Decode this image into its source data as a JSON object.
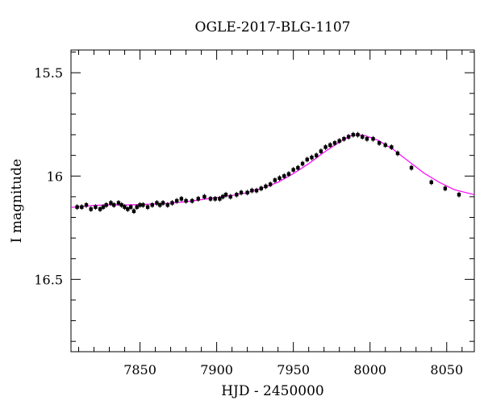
{
  "chart_data": {
    "type": "scatter",
    "title": "OGLE-2017-BLG-1107",
    "xlabel": "HJD - 2450000",
    "ylabel": "I magnitude",
    "xlim": [
      7805,
      8068
    ],
    "ylim": [
      16.85,
      15.39
    ],
    "y_inverted": true,
    "grid": false,
    "xticks": [
      {
        "value": 7850,
        "label": "7850"
      },
      {
        "value": 7900,
        "label": "7900"
      },
      {
        "value": 7950,
        "label": "7950"
      },
      {
        "value": 8000,
        "label": "8000"
      },
      {
        "value": 8050,
        "label": "8050"
      }
    ],
    "yticks": [
      {
        "value": 15.5,
        "label": "15.5"
      },
      {
        "value": 16,
        "label": "16"
      },
      {
        "value": 16.5,
        "label": "16.5"
      }
    ],
    "x_minor_step": 10,
    "y_minor_step": 0.1,
    "series": [
      {
        "kind": "points",
        "color": "#000000",
        "points": [
          [
            7809,
            16.15
          ],
          [
            7812,
            16.15
          ],
          [
            7815,
            16.14
          ],
          [
            7818,
            16.16
          ],
          [
            7821,
            16.15
          ],
          [
            7824,
            16.16
          ],
          [
            7826,
            16.15
          ],
          [
            7828,
            16.14
          ],
          [
            7831,
            16.13
          ],
          [
            7833,
            16.14
          ],
          [
            7836,
            16.13
          ],
          [
            7838,
            16.14
          ],
          [
            7840,
            16.15
          ],
          [
            7842,
            16.16
          ],
          [
            7844,
            16.15
          ],
          [
            7846,
            16.17
          ],
          [
            7848,
            16.15
          ],
          [
            7850,
            16.14
          ],
          [
            7852,
            16.14
          ],
          [
            7855,
            16.15
          ],
          [
            7858,
            16.14
          ],
          [
            7861,
            16.13
          ],
          [
            7863,
            16.14
          ],
          [
            7865,
            16.13
          ],
          [
            7868,
            16.14
          ],
          [
            7871,
            16.13
          ],
          [
            7874,
            16.12
          ],
          [
            7877,
            16.11
          ],
          [
            7880,
            16.12
          ],
          [
            7884,
            16.12
          ],
          [
            7888,
            16.11
          ],
          [
            7892,
            16.1
          ],
          [
            7896,
            16.11
          ],
          [
            7899,
            16.11
          ],
          [
            7902,
            16.11
          ],
          [
            7904,
            16.1
          ],
          [
            7906,
            16.09
          ],
          [
            7909,
            16.1
          ],
          [
            7913,
            16.09
          ],
          [
            7916,
            16.08
          ],
          [
            7920,
            16.08
          ],
          [
            7923,
            16.07
          ],
          [
            7926,
            16.07
          ],
          [
            7929,
            16.06
          ],
          [
            7932,
            16.05
          ],
          [
            7935,
            16.04
          ],
          [
            7938,
            16.02
          ],
          [
            7941,
            16.01
          ],
          [
            7944,
            16.0
          ],
          [
            7947,
            15.99
          ],
          [
            7950,
            15.97
          ],
          [
            7953,
            15.96
          ],
          [
            7956,
            15.94
          ],
          [
            7959,
            15.92
          ],
          [
            7962,
            15.91
          ],
          [
            7965,
            15.9
          ],
          [
            7968,
            15.88
          ],
          [
            7971,
            15.86
          ],
          [
            7974,
            15.85
          ],
          [
            7977,
            15.84
          ],
          [
            7980,
            15.83
          ],
          [
            7983,
            15.82
          ],
          [
            7986,
            15.81
          ],
          [
            7989,
            15.8
          ],
          [
            7992,
            15.8
          ],
          [
            7995,
            15.81
          ],
          [
            7998,
            15.82
          ],
          [
            8002,
            15.82
          ],
          [
            8006,
            15.84
          ],
          [
            8010,
            15.85
          ],
          [
            8014,
            15.86
          ],
          [
            8018,
            15.89
          ],
          [
            8027,
            15.96
          ],
          [
            8040,
            16.03
          ],
          [
            8049,
            16.06
          ],
          [
            8058,
            16.09
          ]
        ]
      },
      {
        "kind": "line",
        "color": "#ff00ff",
        "points": [
          [
            7805,
            16.152
          ],
          [
            7810,
            16.149
          ],
          [
            7820,
            16.142
          ],
          [
            7830,
            16.139
          ],
          [
            7840,
            16.14
          ],
          [
            7850,
            16.138
          ],
          [
            7860,
            16.135
          ],
          [
            7870,
            16.131
          ],
          [
            7880,
            16.124
          ],
          [
            7890,
            16.114
          ],
          [
            7900,
            16.104
          ],
          [
            7910,
            16.094
          ],
          [
            7920,
            16.08
          ],
          [
            7930,
            16.058
          ],
          [
            7940,
            16.03
          ],
          [
            7950,
            15.988
          ],
          [
            7960,
            15.94
          ],
          [
            7970,
            15.885
          ],
          [
            7980,
            15.836
          ],
          [
            7987,
            15.806
          ],
          [
            7992,
            15.8
          ],
          [
            7997,
            15.805
          ],
          [
            8005,
            15.826
          ],
          [
            8015,
            15.87
          ],
          [
            8025,
            15.928
          ],
          [
            8035,
            15.985
          ],
          [
            8045,
            16.03
          ],
          [
            8055,
            16.066
          ],
          [
            8068,
            16.09
          ]
        ]
      }
    ]
  }
}
